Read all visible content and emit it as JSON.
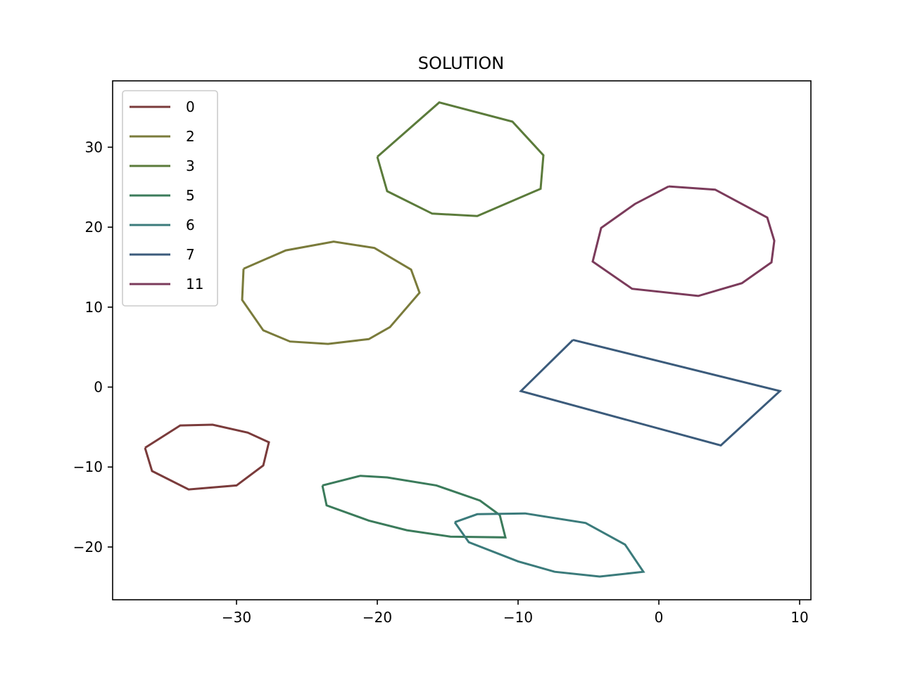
{
  "chart_data": {
    "type": "line",
    "title": "SOLUTION",
    "xlabel": "",
    "ylabel": "",
    "xlim": [
      -38.8,
      10.8
    ],
    "ylim": [
      -26.6,
      38.3
    ],
    "xticks": [
      -30,
      -20,
      -10,
      0,
      10
    ],
    "yticks": [
      -20,
      -10,
      0,
      10,
      20,
      30
    ],
    "xtick_labels": [
      "−30",
      "−20",
      "−10",
      "0",
      "10"
    ],
    "ytick_labels": [
      "−20",
      "−10",
      "0",
      "10",
      "20",
      "30"
    ],
    "grid": false,
    "legend_position": "top-left",
    "series": [
      {
        "name": "0",
        "color": "#7a3b3b",
        "points": [
          [
            -36.5,
            -7.6
          ],
          [
            -34.0,
            -4.8
          ],
          [
            -31.7,
            -4.7
          ],
          [
            -29.2,
            -5.7
          ],
          [
            -27.7,
            -6.9
          ],
          [
            -28.1,
            -9.8
          ],
          [
            -30.0,
            -12.3
          ],
          [
            -33.4,
            -12.8
          ],
          [
            -36.0,
            -10.5
          ],
          [
            -36.5,
            -7.6
          ]
        ]
      },
      {
        "name": "2",
        "color": "#7a7b3b",
        "points": [
          [
            -29.5,
            14.8
          ],
          [
            -26.5,
            17.1
          ],
          [
            -23.1,
            18.2
          ],
          [
            -20.2,
            17.4
          ],
          [
            -17.6,
            14.7
          ],
          [
            -17.0,
            11.8
          ],
          [
            -19.1,
            7.5
          ],
          [
            -20.6,
            6.0
          ],
          [
            -23.5,
            5.4
          ],
          [
            -26.2,
            5.7
          ],
          [
            -28.1,
            7.1
          ],
          [
            -29.6,
            10.9
          ],
          [
            -29.5,
            14.8
          ]
        ]
      },
      {
        "name": "3",
        "color": "#5b7b3b",
        "points": [
          [
            -20.0,
            28.8
          ],
          [
            -15.6,
            35.6
          ],
          [
            -10.4,
            33.2
          ],
          [
            -8.2,
            29.0
          ],
          [
            -8.4,
            24.8
          ],
          [
            -12.9,
            21.4
          ],
          [
            -16.1,
            21.7
          ],
          [
            -19.3,
            24.5
          ],
          [
            -20.0,
            28.8
          ]
        ]
      },
      {
        "name": "5",
        "color": "#3b7b5b",
        "points": [
          [
            -23.9,
            -12.3
          ],
          [
            -21.2,
            -11.1
          ],
          [
            -19.3,
            -11.3
          ],
          [
            -15.8,
            -12.3
          ],
          [
            -12.7,
            -14.2
          ],
          [
            -11.3,
            -16.0
          ],
          [
            -10.9,
            -18.8
          ],
          [
            -14.8,
            -18.7
          ],
          [
            -17.9,
            -17.9
          ],
          [
            -20.6,
            -16.7
          ],
          [
            -23.6,
            -14.8
          ],
          [
            -23.9,
            -12.3
          ]
        ]
      },
      {
        "name": "6",
        "color": "#3b7b7b",
        "points": [
          [
            -14.5,
            -16.9
          ],
          [
            -12.9,
            -15.9
          ],
          [
            -9.5,
            -15.8
          ],
          [
            -5.2,
            -17.0
          ],
          [
            -2.4,
            -19.7
          ],
          [
            -1.1,
            -23.1
          ],
          [
            -4.2,
            -23.7
          ],
          [
            -7.4,
            -23.1
          ],
          [
            -10.0,
            -21.8
          ],
          [
            -13.5,
            -19.4
          ],
          [
            -14.5,
            -16.9
          ]
        ]
      },
      {
        "name": "7",
        "color": "#3b5b7b",
        "points": [
          [
            -6.1,
            5.9
          ],
          [
            8.6,
            -0.5
          ],
          [
            4.4,
            -7.3
          ],
          [
            -9.8,
            -0.5
          ],
          [
            -6.1,
            5.9
          ]
        ]
      },
      {
        "name": "11",
        "color": "#7b3b5b",
        "points": [
          [
            0.7,
            25.1
          ],
          [
            4.0,
            24.7
          ],
          [
            7.7,
            21.2
          ],
          [
            8.2,
            18.3
          ],
          [
            8.0,
            15.6
          ],
          [
            5.9,
            13.0
          ],
          [
            2.8,
            11.4
          ],
          [
            -1.9,
            12.3
          ],
          [
            -4.7,
            15.7
          ],
          [
            -4.1,
            19.9
          ],
          [
            -1.7,
            22.9
          ],
          [
            0.7,
            25.1
          ]
        ]
      }
    ]
  }
}
